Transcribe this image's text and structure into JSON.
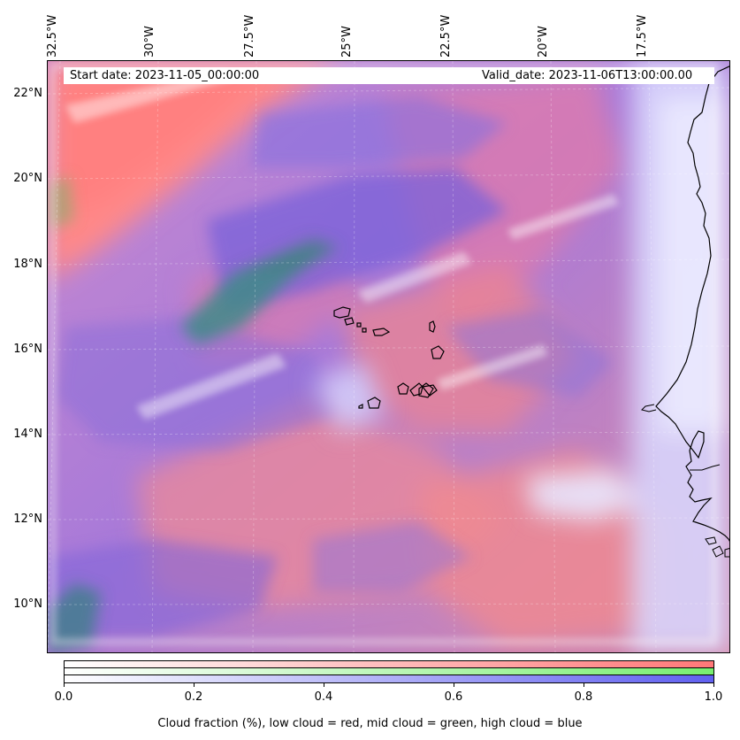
{
  "map": {
    "header": {
      "start_date": "Start date: 2023-11-05_00:00:00",
      "valid_date": "Valid_date: 2023-11-06T13:00:00.00"
    },
    "longitude_labels": [
      "32.5°W",
      "30°W",
      "27.5°W",
      "25°W",
      "22.5°W",
      "20°W",
      "17.5°W"
    ],
    "latitude_labels": [
      "22°N",
      "20°N",
      "18°N",
      "16°N",
      "14°N",
      "12°N",
      "10°N"
    ],
    "layers": {
      "low_cloud": "red",
      "mid_cloud": "green",
      "high_cloud": "blue"
    },
    "colors": {
      "low_cloud": "#ff8080",
      "mid_cloud": "#80e080",
      "high_cloud": "#7070f0",
      "background_haze": "#b0a0e0"
    }
  },
  "colorbar": {
    "tick_labels": [
      "0.0",
      "0.2",
      "0.4",
      "0.6",
      "0.8",
      "1.0"
    ],
    "caption": "Cloud fraction (%), low cloud = red, mid cloud = green, high cloud = blue"
  }
}
